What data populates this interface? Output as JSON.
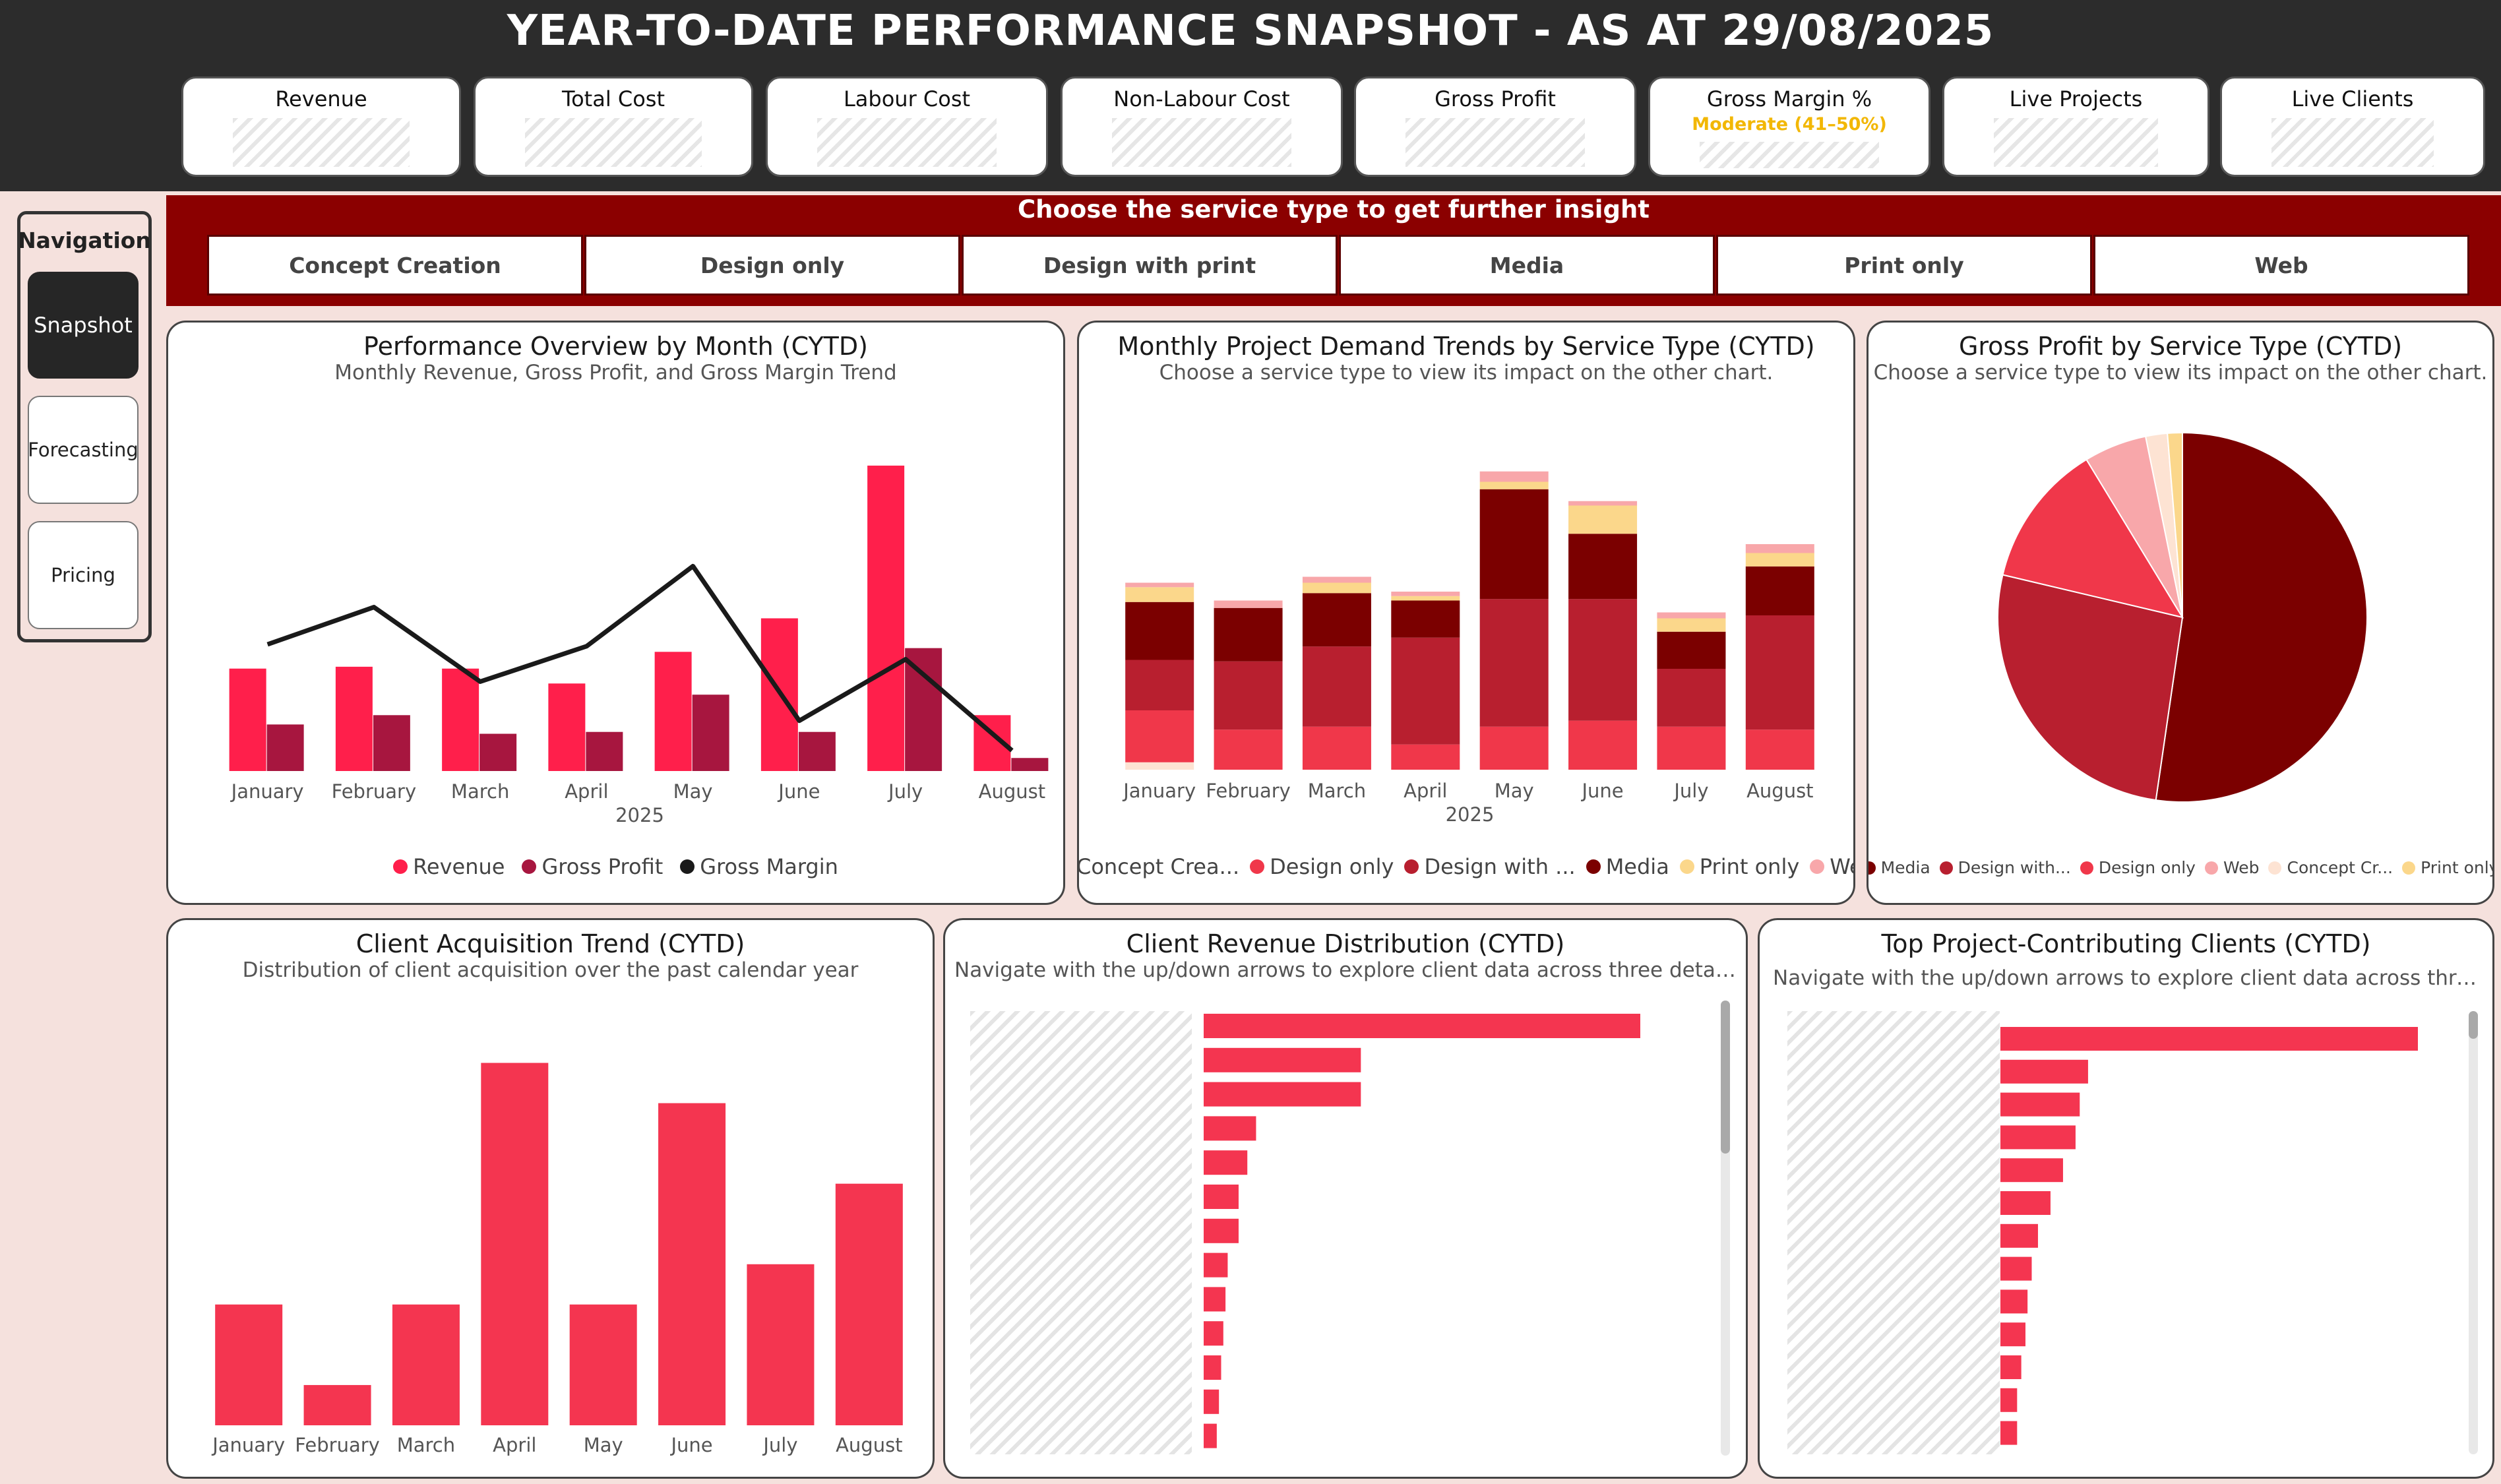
{
  "header": {
    "title": "YEAR-TO-DATE PERFORMANCE SNAPSHOT - AS AT 29/08/2025"
  },
  "kpis": [
    {
      "label": "Revenue"
    },
    {
      "label": "Total Cost"
    },
    {
      "label": "Labour Cost"
    },
    {
      "label": "Non-Labour Cost"
    },
    {
      "label": "Gross Profit"
    },
    {
      "label": "Gross Margin %",
      "status": "Moderate (41–50%)",
      "status_color": "#f2b705"
    },
    {
      "label": "Live Projects"
    },
    {
      "label": "Live Clients"
    }
  ],
  "navigation": {
    "title": "Navigation",
    "items": [
      {
        "label": "Snapshot",
        "active": true
      },
      {
        "label": "Forecasting",
        "active": false
      },
      {
        "label": "Pricing",
        "active": false
      }
    ]
  },
  "service_slicer": {
    "title": "Choose the service type to get further insight",
    "options": [
      "Concept Creation",
      "Design only",
      "Design with print",
      "Media",
      "Print only",
      "Web"
    ]
  },
  "colors": {
    "revenue": "#ff1f4b",
    "gross_profit": "#a7163f",
    "gross_margin": "#1a1a1a",
    "media": "#7b0000",
    "design_with_print": "#b81f2f",
    "design_only": "#f0374a",
    "web": "#f8a7aa",
    "concept_creation": "#fde3d3",
    "print_only": "#fbd78b",
    "bar_red": "#f43550"
  },
  "performance_chart": {
    "title": "Performance Overview by Month (CYTD)",
    "subtitle": "Monthly Revenue, Gross Profit, and Gross Margin Trend",
    "year_label": "2025",
    "legend": [
      "Revenue",
      "Gross Profit",
      "Gross Margin"
    ]
  },
  "demand_chart": {
    "title": "Monthly Project Demand Trends by Service Type (CYTD)",
    "subtitle": "Choose a service type to view its impact on the other chart.",
    "year_label": "2025",
    "legend": [
      "Concept Crea...",
      "Design only",
      "Design with ...",
      "Media",
      "Print only",
      "Web"
    ]
  },
  "pie_chart": {
    "title": "Gross Profit by Service Type (CYTD)",
    "subtitle": "Choose a service type to view its impact on the other chart.",
    "legend": [
      "Media",
      "Design with...",
      "Design only",
      "Web",
      "Concept Cr...",
      "Print only"
    ]
  },
  "acquisition_chart": {
    "title": "Client Acquisition Trend (CYTD)",
    "subtitle": "Distribution of client acquisition over the past calendar year"
  },
  "client_revenue_chart": {
    "title": "Client Revenue Distribution (CYTD)",
    "subtitle": "Navigate with the up/down arrows to explore client data across three detail levels."
  },
  "top_clients_chart": {
    "title": "Top Project-Contributing Clients (CYTD)",
    "subtitle": "Navigate with the up/down arrows to explore client data across three detail levels."
  },
  "chart_data": [
    {
      "id": "performance",
      "type": "bar",
      "categories": [
        "January",
        "February",
        "March",
        "April",
        "May",
        "June",
        "July",
        "August"
      ],
      "series": [
        {
          "name": "Revenue",
          "kind": "bar",
          "values": [
            55,
            56,
            55,
            47,
            64,
            82,
            164,
            30
          ]
        },
        {
          "name": "Gross Profit",
          "kind": "bar",
          "values": [
            25,
            30,
            20,
            21,
            41,
            21,
            66,
            7
          ]
        },
        {
          "name": "Gross Margin",
          "kind": "line",
          "values": [
            68,
            88,
            48,
            67,
            110,
            27,
            60,
            11
          ]
        }
      ],
      "ylim": [
        0,
        170
      ],
      "xlabel": "2025"
    },
    {
      "id": "demand",
      "type": "bar",
      "stacked": true,
      "categories": [
        "January",
        "February",
        "March",
        "April",
        "May",
        "June",
        "July",
        "August"
      ],
      "series": [
        {
          "name": "Concept Creation",
          "values": [
            0.5,
            0,
            0,
            0,
            0,
            0,
            0,
            0
          ]
        },
        {
          "name": "Design only",
          "values": [
            3.5,
            2.7,
            2.9,
            1.7,
            2.9,
            3.3,
            2.9,
            2.7
          ]
        },
        {
          "name": "Design with print",
          "values": [
            3.4,
            4.6,
            5.4,
            7.2,
            8.6,
            8.2,
            3.9,
            7.7
          ]
        },
        {
          "name": "Media",
          "values": [
            3.9,
            3.6,
            3.6,
            2.5,
            7.4,
            4.4,
            2.5,
            3.3
          ]
        },
        {
          "name": "Print only",
          "values": [
            1.0,
            0,
            0.7,
            0.3,
            0.5,
            1.9,
            0.9,
            0.9
          ]
        },
        {
          "name": "Web",
          "values": [
            0.3,
            0.5,
            0.4,
            0.3,
            0.7,
            0.3,
            0.4,
            0.6
          ]
        }
      ],
      "xlabel": "2025"
    },
    {
      "id": "gross_profit_share",
      "type": "pie",
      "slices": [
        {
          "name": "Media",
          "value": 52.3
        },
        {
          "name": "Design with print",
          "value": 26.4
        },
        {
          "name": "Design only",
          "value": 12.6
        },
        {
          "name": "Web",
          "value": 5.5
        },
        {
          "name": "Concept Creation",
          "value": 1.9
        },
        {
          "name": "Print only",
          "value": 1.3
        }
      ]
    },
    {
      "id": "client_acquisition",
      "type": "bar",
      "categories": [
        "January",
        "February",
        "March",
        "April",
        "May",
        "June",
        "July",
        "August"
      ],
      "values": [
        3,
        1,
        3,
        9,
        3,
        8,
        4,
        6
      ],
      "ylim": [
        0,
        9.5
      ]
    },
    {
      "id": "client_revenue",
      "type": "bar",
      "orientation": "horizontal",
      "values": [
        100,
        36,
        36,
        12,
        10,
        8,
        8,
        5.5,
        5,
        4.5,
        4,
        3.5,
        3
      ]
    },
    {
      "id": "top_clients",
      "type": "bar",
      "orientation": "horizontal",
      "values": [
        100,
        21,
        19,
        18,
        15,
        12,
        9,
        7.5,
        6.5,
        6,
        5,
        4,
        4
      ]
    }
  ]
}
